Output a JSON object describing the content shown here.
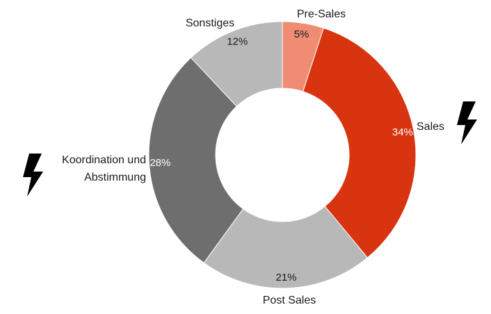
{
  "chart_data": {
    "type": "pie",
    "donut": true,
    "title": "",
    "slices": [
      {
        "label": "Pre-Sales",
        "value": 5,
        "value_label": "5%",
        "color": "#F08C74",
        "value_text_color": "#1a1a1a"
      },
      {
        "label": "Sales",
        "value": 34,
        "value_label": "34%",
        "color": "#D7340F",
        "value_text_color": "#ffffff",
        "marker": "lightning-icon"
      },
      {
        "label": "Post Sales",
        "value": 21,
        "value_label": "21%",
        "color": "#B8B8B8",
        "value_text_color": "#1a1a1a"
      },
      {
        "label": "Koordination und Abstimmung",
        "label_lines": [
          "Koordination und",
          "Abstimmung"
        ],
        "value": 28,
        "value_label": "28%",
        "color": "#6E6E6E",
        "value_text_color": "#ffffff",
        "marker": "lightning-icon"
      },
      {
        "label": "Sonstiges",
        "value": 12,
        "value_label": "12%",
        "color": "#B8B8B8",
        "value_text_color": "#1a1a1a"
      }
    ],
    "start_angle_deg": 0,
    "direction": "clockwise",
    "legend": "none"
  }
}
